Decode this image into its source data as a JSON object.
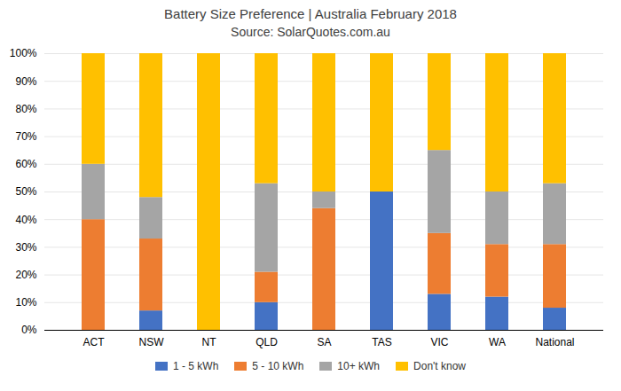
{
  "chart_data": {
    "type": "bar",
    "title": "Battery Size Preference  |  Australia February 2018",
    "subtitle": "Source: SolarQuotes.com.au",
    "categories": [
      "ACT",
      "NSW",
      "NT",
      "QLD",
      "SA",
      "TAS",
      "VIC",
      "WA",
      "National"
    ],
    "series": [
      {
        "name": "1 - 5 kWh",
        "color": "#4472C4",
        "values": [
          0,
          7,
          0,
          10,
          0,
          50,
          13,
          12,
          8
        ]
      },
      {
        "name": "5 - 10 kWh",
        "color": "#ED7D31",
        "values": [
          40,
          26,
          0,
          11,
          44,
          0,
          22,
          19,
          23
        ]
      },
      {
        "name": "10+ kWh",
        "color": "#A5A5A5",
        "values": [
          20,
          15,
          0,
          32,
          6,
          0,
          30,
          19,
          22
        ]
      },
      {
        "name": "Don't know",
        "color": "#FFC000",
        "values": [
          40,
          52,
          100,
          47,
          50,
          50,
          35,
          50,
          47
        ]
      }
    ],
    "stacked": true,
    "ylim": [
      0,
      100
    ],
    "yticks": [
      {
        "value": 0,
        "label": "0%"
      },
      {
        "value": 10,
        "label": "10%"
      },
      {
        "value": 20,
        "label": "20%"
      },
      {
        "value": 30,
        "label": "30%"
      },
      {
        "value": 40,
        "label": "40%"
      },
      {
        "value": 50,
        "label": "50%"
      },
      {
        "value": 60,
        "label": "60%"
      },
      {
        "value": 70,
        "label": "70%"
      },
      {
        "value": 80,
        "label": "80%"
      },
      {
        "value": 90,
        "label": "90%"
      },
      {
        "value": 100,
        "label": "100%"
      }
    ],
    "grid": true,
    "legend": "bottom"
  }
}
